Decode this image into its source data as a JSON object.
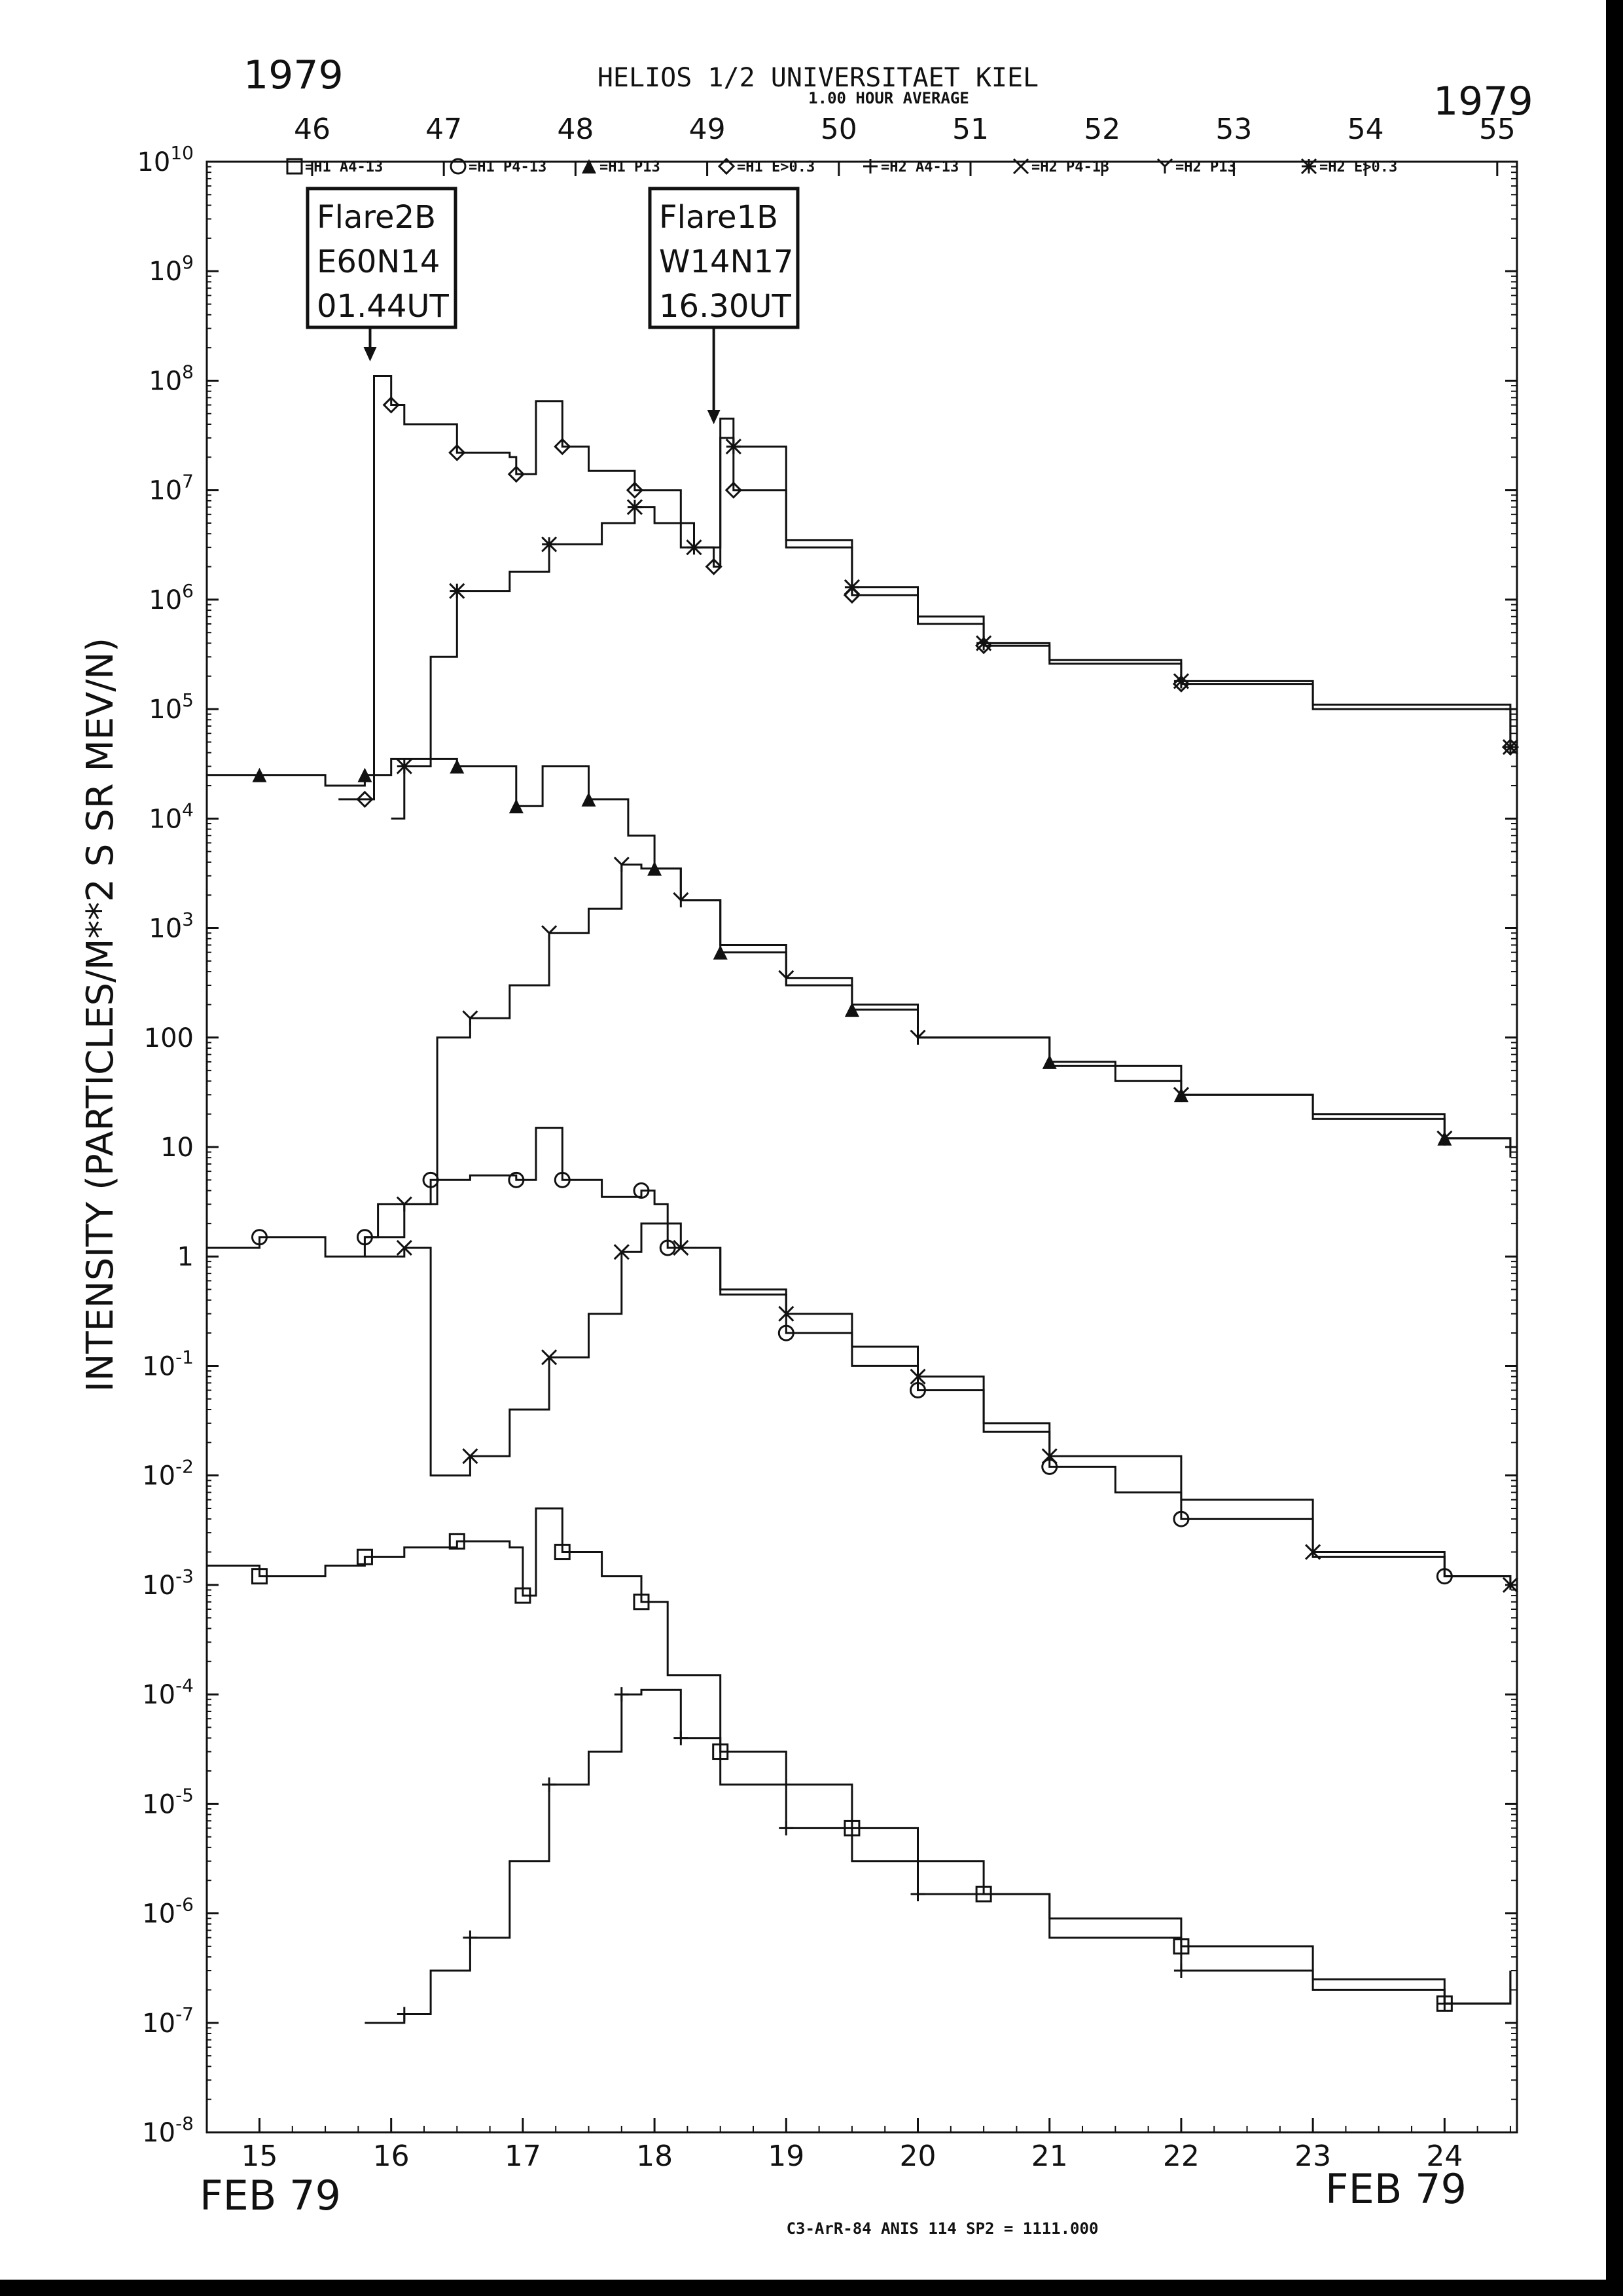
{
  "chart_data": {
    "type": "line",
    "title": "HELIOS 1/2  UNIVERSITAET KIEL",
    "subtitle": "1.00 HOUR AVERAGE",
    "year_left": "1979",
    "year_right": "1979",
    "ylabel": "INTENSITY (PARTICLES/M**2 S SR MEV/N)",
    "xlabel_left": "FEB 79",
    "xlabel_right": "FEB 79",
    "footer": "C3-ArR-84 ANIS 114 SP2 = 1111.000",
    "yscale": "log",
    "ylim": [
      1e-08,
      10000000000.0
    ],
    "xlim": [
      14.6,
      24.55
    ],
    "y_ticks": [
      {
        "value": 10000000000.0,
        "base": "10",
        "exp": "10"
      },
      {
        "value": 1000000000.0,
        "base": "10",
        "exp": "9"
      },
      {
        "value": 100000000.0,
        "base": "10",
        "exp": "8"
      },
      {
        "value": 10000000.0,
        "base": "10",
        "exp": "7"
      },
      {
        "value": 1000000.0,
        "base": "10",
        "exp": "6"
      },
      {
        "value": 100000.0,
        "base": "10",
        "exp": "5"
      },
      {
        "value": 10000.0,
        "base": "10",
        "exp": "4"
      },
      {
        "value": 1000.0,
        "base": "10",
        "exp": "3"
      },
      {
        "value": 100,
        "base": "100",
        "exp": ""
      },
      {
        "value": 10,
        "base": "10",
        "exp": ""
      },
      {
        "value": 1,
        "base": "1",
        "exp": ""
      },
      {
        "value": 0.1,
        "base": "10",
        "exp": "-1"
      },
      {
        "value": 0.01,
        "base": "10",
        "exp": "-2"
      },
      {
        "value": 0.001,
        "base": "10",
        "exp": "-3"
      },
      {
        "value": 0.0001,
        "base": "10",
        "exp": "-4"
      },
      {
        "value": 1e-05,
        "base": "10",
        "exp": "-5"
      },
      {
        "value": 1e-06,
        "base": "10",
        "exp": "-6"
      },
      {
        "value": 1e-07,
        "base": "10",
        "exp": "-7"
      },
      {
        "value": 1e-08,
        "base": "10",
        "exp": "-8"
      }
    ],
    "x_ticks_bottom": [
      {
        "value": 15,
        "label": "15"
      },
      {
        "value": 16,
        "label": "16"
      },
      {
        "value": 17,
        "label": "17"
      },
      {
        "value": 18,
        "label": "18"
      },
      {
        "value": 19,
        "label": "19"
      },
      {
        "value": 20,
        "label": "20"
      },
      {
        "value": 21,
        "label": "21"
      },
      {
        "value": 22,
        "label": "22"
      },
      {
        "value": 23,
        "label": "23"
      },
      {
        "value": 24,
        "label": "24"
      }
    ],
    "x_ticks_top": [
      {
        "value": 15.4,
        "label": "46"
      },
      {
        "value": 16.4,
        "label": "47"
      },
      {
        "value": 17.4,
        "label": "48"
      },
      {
        "value": 18.4,
        "label": "49"
      },
      {
        "value": 19.4,
        "label": "50"
      },
      {
        "value": 20.4,
        "label": "51"
      },
      {
        "value": 21.4,
        "label": "52"
      },
      {
        "value": 22.4,
        "label": "53"
      },
      {
        "value": 23.4,
        "label": "54"
      },
      {
        "value": 24.4,
        "label": "55"
      }
    ],
    "legend": [
      {
        "symbol": "square",
        "label": "=H1 A4-13"
      },
      {
        "symbol": "circle",
        "label": "=H1 P4-13"
      },
      {
        "symbol": "triangle",
        "label": "=H1 P13"
      },
      {
        "symbol": "diamond",
        "label": "=H1 E>0.3"
      },
      {
        "symbol": "plus",
        "label": "=H2 A4-13"
      },
      {
        "symbol": "cross",
        "label": "=H2 P4-13"
      },
      {
        "symbol": "y",
        "label": "=H2 P13"
      },
      {
        "symbol": "star",
        "label": "=H2 E>0.3"
      }
    ],
    "annotations": [
      {
        "lines": [
          "Flare2B",
          "E60N14",
          "01.44UT"
        ],
        "x": 15.84,
        "y": 150000000.0
      },
      {
        "lines": [
          "Flare1B",
          "W14N17",
          "16.30UT"
        ],
        "x": 18.45,
        "y": 40000000.0
      }
    ],
    "series": [
      {
        "name": "=H1 E>0.3",
        "symbol": "diamond",
        "points": [
          [
            15.6,
            15000.0
          ],
          [
            15.8,
            15000.0
          ],
          [
            15.87,
            110000000.0
          ],
          [
            16.0,
            60000000.0
          ],
          [
            16.1,
            40000000.0
          ],
          [
            16.5,
            22000000.0
          ],
          [
            16.9,
            20000000.0
          ],
          [
            16.95,
            14000000.0
          ],
          [
            17.1,
            65000000.0
          ],
          [
            17.3,
            25000000.0
          ],
          [
            17.5,
            15000000.0
          ],
          [
            17.85,
            10000000.0
          ],
          [
            18.2,
            3000000.0
          ],
          [
            18.45,
            2000000.0
          ],
          [
            18.5,
            45000000.0
          ],
          [
            18.6,
            10000000.0
          ],
          [
            19.0,
            3000000.0
          ],
          [
            19.5,
            1100000.0
          ],
          [
            20.0,
            600000.0
          ],
          [
            20.5,
            380000.0
          ],
          [
            21.0,
            260000.0
          ],
          [
            22.0,
            170000.0
          ],
          [
            23.0,
            100000.0
          ],
          [
            24.5,
            45000.0
          ]
        ]
      },
      {
        "name": "=H2 E>0.3",
        "symbol": "star",
        "points": [
          [
            16.0,
            10000.0
          ],
          [
            16.1,
            30000.0
          ],
          [
            16.3,
            300000.0
          ],
          [
            16.5,
            1200000.0
          ],
          [
            16.9,
            1800000.0
          ],
          [
            17.2,
            3200000.0
          ],
          [
            17.6,
            5000000.0
          ],
          [
            17.85,
            7000000.0
          ],
          [
            18.0,
            5000000.0
          ],
          [
            18.3,
            3000000.0
          ],
          [
            18.5,
            30000000.0
          ],
          [
            18.6,
            25000000.0
          ],
          [
            19.0,
            3500000.0
          ],
          [
            19.5,
            1300000.0
          ],
          [
            20.0,
            700000.0
          ],
          [
            20.5,
            400000.0
          ],
          [
            21.0,
            280000.0
          ],
          [
            22.0,
            180000.0
          ],
          [
            23.0,
            110000.0
          ],
          [
            24.5,
            45000.0
          ]
        ]
      },
      {
        "name": "=H1 P13",
        "symbol": "triangle",
        "points": [
          [
            14.6,
            25000.0
          ],
          [
            15.0,
            25000.0
          ],
          [
            15.5,
            20000.0
          ],
          [
            15.8,
            25000.0
          ],
          [
            16.0,
            35000.0
          ],
          [
            16.5,
            30000.0
          ],
          [
            16.9,
            30000.0
          ],
          [
            16.95,
            13000.0
          ],
          [
            17.15,
            30000.0
          ],
          [
            17.5,
            15000.0
          ],
          [
            17.8,
            7000.0
          ],
          [
            18.0,
            3500.0
          ],
          [
            18.2,
            1800.0
          ],
          [
            18.5,
            600
          ],
          [
            19.0,
            300
          ],
          [
            19.5,
            180
          ],
          [
            20.0,
            100
          ],
          [
            21.0,
            60
          ],
          [
            21.5,
            40
          ],
          [
            22.0,
            30
          ],
          [
            23.0,
            20
          ],
          [
            24.0,
            12
          ],
          [
            24.5,
            8
          ]
        ]
      },
      {
        "name": "=H2 P13",
        "symbol": "y",
        "points": [
          [
            15.8,
            1.5
          ],
          [
            16.1,
            3
          ],
          [
            16.35,
            100
          ],
          [
            16.6,
            150
          ],
          [
            16.9,
            300
          ],
          [
            17.2,
            900
          ],
          [
            17.5,
            1500.0
          ],
          [
            17.75,
            3800.0
          ],
          [
            17.9,
            3500.0
          ],
          [
            18.2,
            1800.0
          ],
          [
            18.5,
            700
          ],
          [
            19.0,
            350
          ],
          [
            19.5,
            200
          ],
          [
            20.0,
            100
          ],
          [
            21.0,
            55
          ],
          [
            22.0,
            30
          ],
          [
            23.0,
            18
          ],
          [
            24.0,
            12
          ],
          [
            24.5,
            10
          ]
        ]
      },
      {
        "name": "=H1 P4-13",
        "symbol": "circle",
        "points": [
          [
            14.6,
            1.2
          ],
          [
            15.0,
            1.5
          ],
          [
            15.5,
            1
          ],
          [
            15.8,
            1.5
          ],
          [
            15.9,
            3
          ],
          [
            16.3,
            5
          ],
          [
            16.6,
            5.5
          ],
          [
            16.95,
            5
          ],
          [
            17.1,
            15
          ],
          [
            17.3,
            5
          ],
          [
            17.6,
            3.5
          ],
          [
            17.9,
            4
          ],
          [
            18.0,
            3
          ],
          [
            18.1,
            1.2
          ],
          [
            18.5,
            0.45
          ],
          [
            19.0,
            0.2
          ],
          [
            19.5,
            0.1
          ],
          [
            20.0,
            0.06
          ],
          [
            20.5,
            0.025
          ],
          [
            21.0,
            0.012
          ],
          [
            21.5,
            0.007
          ],
          [
            22.0,
            0.004
          ],
          [
            23.0,
            0.0018
          ],
          [
            24.0,
            0.0012
          ],
          [
            24.5,
            0.0009
          ]
        ]
      },
      {
        "name": "=H2 P4-13",
        "symbol": "cross",
        "points": [
          [
            15.8,
            1
          ],
          [
            16.1,
            1.2
          ],
          [
            16.3,
            0.01
          ],
          [
            16.6,
            0.015
          ],
          [
            16.9,
            0.04
          ],
          [
            17.2,
            0.12
          ],
          [
            17.5,
            0.3
          ],
          [
            17.75,
            1.1
          ],
          [
            17.9,
            2
          ],
          [
            18.2,
            1.2
          ],
          [
            18.5,
            0.5
          ],
          [
            19.0,
            0.3
          ],
          [
            19.5,
            0.15
          ],
          [
            20.0,
            0.08
          ],
          [
            20.5,
            0.03
          ],
          [
            21.0,
            0.015
          ],
          [
            22.0,
            0.006
          ],
          [
            23.0,
            0.002
          ],
          [
            24.0,
            0.0012
          ],
          [
            24.5,
            0.001
          ]
        ]
      },
      {
        "name": "=H1 A4-13",
        "symbol": "square",
        "points": [
          [
            14.6,
            0.0015
          ],
          [
            15.0,
            0.0012
          ],
          [
            15.5,
            0.0015
          ],
          [
            15.8,
            0.0018
          ],
          [
            16.1,
            0.0022
          ],
          [
            16.5,
            0.0025
          ],
          [
            16.9,
            0.0022
          ],
          [
            17.0,
            0.0008
          ],
          [
            17.1,
            0.005
          ],
          [
            17.3,
            0.002
          ],
          [
            17.6,
            0.0012
          ],
          [
            17.9,
            0.0007
          ],
          [
            18.1,
            0.00015
          ],
          [
            18.5,
            3e-05
          ],
          [
            19.0,
            1.5e-05
          ],
          [
            19.5,
            6e-06
          ],
          [
            20.0,
            3e-06
          ],
          [
            20.5,
            1.5e-06
          ],
          [
            21.0,
            9e-07
          ],
          [
            22.0,
            5e-07
          ],
          [
            23.0,
            2.5e-07
          ],
          [
            24.0,
            1.5e-07
          ],
          [
            24.5,
            3e-07
          ]
        ]
      },
      {
        "name": "=H2 A4-13",
        "symbol": "plus",
        "points": [
          [
            15.8,
            1e-07
          ],
          [
            16.1,
            1.2e-07
          ],
          [
            16.3,
            3e-07
          ],
          [
            16.6,
            6e-07
          ],
          [
            16.9,
            3e-06
          ],
          [
            17.2,
            1.5e-05
          ],
          [
            17.5,
            3e-05
          ],
          [
            17.75,
            0.0001
          ],
          [
            17.9,
            0.00011
          ],
          [
            18.2,
            4e-05
          ],
          [
            18.5,
            1.5e-05
          ],
          [
            19.0,
            6e-06
          ],
          [
            19.5,
            3e-06
          ],
          [
            20.0,
            1.5e-06
          ],
          [
            21.0,
            6e-07
          ],
          [
            22.0,
            3e-07
          ],
          [
            23.0,
            2e-07
          ],
          [
            24.0,
            1.5e-07
          ],
          [
            24.5,
            3e-07
          ]
        ]
      }
    ]
  }
}
